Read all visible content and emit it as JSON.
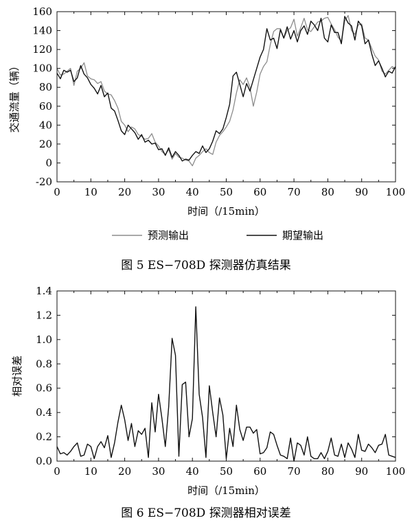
{
  "chart_data": [
    {
      "type": "line",
      "caption": "图 5   ES−708D 探测器仿真结果",
      "xlabel": "时间（/15min）",
      "ylabel": "交通流量（辆）",
      "xlim": [
        0,
        100
      ],
      "ylim": [
        -20,
        160
      ],
      "xticks": [
        "0",
        "10",
        "20",
        "30",
        "40",
        "50",
        "60",
        "70",
        "80",
        "90",
        "100"
      ],
      "yticks": [
        "-20",
        "0",
        "20",
        "40",
        "60",
        "80",
        "100",
        "120",
        "140",
        "160"
      ],
      "legend_position": "bottom-center, below plot",
      "grid": false,
      "series": [
        {
          "name": "预测输出",
          "color": "#8c8c8c",
          "values": [
            100,
            93,
            94,
            97,
            100,
            82,
            97,
            100,
            106,
            92,
            89,
            88,
            84,
            86,
            76,
            73,
            72,
            66,
            58,
            44,
            40,
            33,
            38,
            36,
            30,
            28,
            25,
            26,
            31,
            22,
            18,
            12,
            9,
            14,
            4,
            10,
            6,
            5,
            3,
            2,
            -3,
            5,
            8,
            12,
            15,
            11,
            9,
            22,
            29,
            33,
            38,
            44,
            56,
            74,
            88,
            83,
            90,
            80,
            60,
            75,
            94,
            102,
            107,
            125,
            139,
            142,
            142,
            132,
            140,
            143,
            152,
            134,
            143,
            153,
            141,
            139,
            144,
            149,
            150,
            153,
            154,
            147,
            141,
            133,
            129,
            150,
            156,
            140,
            136,
            146,
            147,
            132,
            130,
            121,
            113,
            109,
            97,
            94,
            98,
            102,
            100
          ]
        },
        {
          "name": "期望输出",
          "color": "#111111",
          "values": [
            95,
            89,
            98,
            96,
            98,
            86,
            90,
            103,
            94,
            90,
            83,
            79,
            73,
            82,
            70,
            74,
            58,
            55,
            45,
            34,
            30,
            40,
            36,
            32,
            25,
            30,
            22,
            24,
            20,
            21,
            14,
            15,
            8,
            16,
            6,
            12,
            8,
            2,
            4,
            3,
            8,
            12,
            10,
            18,
            11,
            15,
            23,
            34,
            31,
            36,
            48,
            62,
            92,
            96,
            83,
            70,
            84,
            76,
            88,
            100,
            112,
            120,
            142,
            130,
            132,
            121,
            141,
            132,
            144,
            131,
            140,
            128,
            140,
            145,
            136,
            150,
            146,
            140,
            153,
            132,
            128,
            146,
            138,
            138,
            126,
            155,
            148,
            145,
            130,
            150,
            145,
            126,
            130,
            115,
            103,
            108,
            100,
            91,
            97,
            95,
            102
          ]
        }
      ]
    },
    {
      "type": "line",
      "caption": "图 6   ES−708D 探测器相对误差",
      "xlabel": "时间（/15min）",
      "ylabel": "相对误差",
      "xlim": [
        0,
        100
      ],
      "ylim": [
        0,
        1.4
      ],
      "xticks": [
        "0",
        "10",
        "20",
        "30",
        "40",
        "50",
        "60",
        "70",
        "80",
        "90",
        "100"
      ],
      "yticks": [
        "0.0",
        "0.2",
        "0.4",
        "0.6",
        "0.8",
        "1.0",
        "1.2",
        "1.4"
      ],
      "grid": false,
      "series": [
        {
          "color": "#111111",
          "values": [
            0.12,
            0.06,
            0.07,
            0.05,
            0.08,
            0.12,
            0.15,
            0.04,
            0.05,
            0.14,
            0.12,
            0.02,
            0.12,
            0.16,
            0.11,
            0.21,
            0.03,
            0.15,
            0.32,
            0.46,
            0.34,
            0.17,
            0.31,
            0.12,
            0.25,
            0.22,
            0.27,
            0.03,
            0.48,
            0.24,
            0.55,
            0.35,
            0.12,
            0.45,
            1.01,
            0.87,
            0.04,
            0.63,
            0.65,
            0.2,
            0.35,
            1.27,
            0.55,
            0.36,
            0.03,
            0.62,
            0.4,
            0.2,
            0.52,
            0.38,
            0.02,
            0.27,
            0.12,
            0.46,
            0.26,
            0.17,
            0.28,
            0.28,
            0.23,
            0.26,
            0.06,
            0.07,
            0.11,
            0.24,
            0.22,
            0.13,
            0.05,
            0.04,
            0.02,
            0.19,
            0.0,
            0.15,
            0.13,
            0.05,
            0.2,
            0.04,
            0.02,
            0.02,
            0.07,
            0.02,
            0.08,
            0.19,
            0.05,
            0.04,
            0.14,
            0.03,
            0.15,
            0.1,
            0.03,
            0.22,
            0.09,
            0.08,
            0.14,
            0.11,
            0.07,
            0.13,
            0.14,
            0.22,
            0.05,
            0.04,
            0.03
          ]
        }
      ]
    }
  ]
}
